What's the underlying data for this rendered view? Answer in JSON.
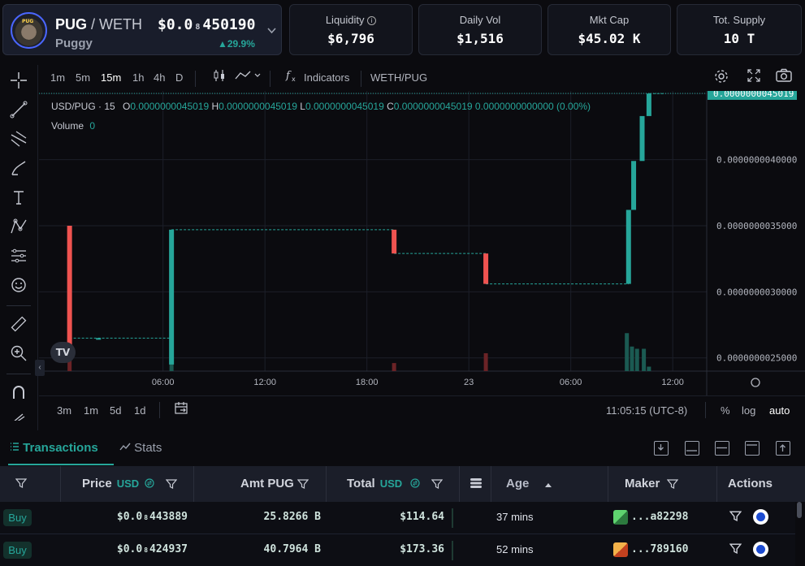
{
  "pair": {
    "base": "PUG",
    "quote": "WETH",
    "name": "Puggy",
    "price_prefix": "$0.0",
    "price_zero_count": "8",
    "price_digits": "450190",
    "change": "▲29.9%"
  },
  "stats": [
    {
      "label": "Liquidity",
      "value": "$6,796",
      "info": true
    },
    {
      "label": "Daily Vol",
      "value": "$1,516"
    },
    {
      "label": "Mkt Cap",
      "value": "$45.02 K"
    },
    {
      "label": "Tot. Supply",
      "value": "10 T"
    }
  ],
  "toolbar": {
    "timeframes": [
      "1m",
      "5m",
      "15m",
      "1h",
      "4h",
      "D"
    ],
    "active_timeframe": "15m",
    "indicators_label": "Indicators",
    "symbol": "WETH/PUG"
  },
  "legend": {
    "symbol": "USD/PUG · 15",
    "o_label": "O",
    "o": "0.0000000045019",
    "h_label": "H",
    "h": "0.0000000045019",
    "l_label": "L",
    "l": "0.0000000045019",
    "c_label": "C",
    "c": "0.0000000045019",
    "change_abs": "0.0000000000000",
    "change_pct": "(0.00%)",
    "volume_label": "Volume",
    "volume_value": "0"
  },
  "chart_data": {
    "type": "candlestick",
    "price_axis_ticks": [
      "0.0000000045000",
      "0.0000000040000",
      "0.0000000035000",
      "0.0000000030000",
      "0.0000000025000"
    ],
    "last_price_label": "0.0000000045019",
    "time_axis_ticks": [
      "06:00",
      "12:00",
      "18:00",
      "23",
      "06:00",
      "12:00"
    ],
    "ylim": [
      2.4e-09,
      4.52e-09
    ],
    "candles": [
      {
        "t": 0.5,
        "o": 3.5,
        "c": 2.5,
        "color": "red"
      },
      {
        "t": 2.2,
        "o": 2.65,
        "c": 2.65,
        "color": "green"
      },
      {
        "t": 6.5,
        "o": 2.45,
        "c": 3.47,
        "color": "green"
      },
      {
        "t": 19.6,
        "o": 3.47,
        "c": 3.29,
        "color": "red"
      },
      {
        "t": 25.0,
        "o": 3.29,
        "c": 3.06,
        "color": "red"
      },
      {
        "t": 33.4,
        "o": 3.06,
        "c": 3.62,
        "color": "green"
      },
      {
        "t": 33.7,
        "o": 3.62,
        "c": 3.99,
        "color": "green"
      },
      {
        "t": 34.2,
        "o": 3.99,
        "c": 4.33,
        "color": "green"
      },
      {
        "t": 34.6,
        "o": 4.33,
        "c": 4.5,
        "color": "green"
      }
    ],
    "flat_lines": [
      {
        "from": 6.5,
        "to": 19.6,
        "y": 3.47
      },
      {
        "from": 19.6,
        "to": 25.0,
        "y": 3.29
      },
      {
        "from": 25.0,
        "to": 33.4,
        "y": 3.06
      },
      {
        "from": 0.5,
        "to": 6.5,
        "y": 2.65
      },
      {
        "from": 34.6,
        "to": 35.6,
        "y": 4.5
      }
    ],
    "volume_bars": [
      {
        "t": 0.5,
        "v": 0.3,
        "color": "red"
      },
      {
        "t": 6.5,
        "v": 0.25,
        "color": "green"
      },
      {
        "t": 19.6,
        "v": 0.18,
        "color": "red"
      },
      {
        "t": 25.0,
        "v": 0.4,
        "color": "red"
      },
      {
        "t": 33.3,
        "v": 0.85,
        "color": "green"
      },
      {
        "t": 33.6,
        "v": 0.55,
        "color": "green"
      },
      {
        "t": 33.9,
        "v": 0.5,
        "color": "green"
      },
      {
        "t": 34.3,
        "v": 0.5,
        "color": "green"
      },
      {
        "t": 34.6,
        "v": 0.1,
        "color": "green"
      }
    ],
    "up_color": "#26a69a",
    "down_color": "#ef5350",
    "grid": true
  },
  "bottom_bar": {
    "ranges": [
      "3m",
      "1m",
      "5d",
      "1d"
    ],
    "clock": "11:05:15 (UTC-8)",
    "pct": "%",
    "log": "log",
    "auto": "auto"
  },
  "tabs": {
    "transactions": "Transactions",
    "stats": "Stats"
  },
  "table": {
    "headers": {
      "price": "Price",
      "price_unit": "USD",
      "amt": "Amt PUG",
      "total": "Total",
      "total_unit": "USD",
      "age": "Age",
      "maker": "Maker",
      "actions": "Actions"
    },
    "rows": [
      {
        "type": "Buy",
        "price_prefix": "$0.0",
        "price_zeros": "8",
        "price_digits": "443889",
        "amount": "25.8266 B",
        "total": "$114.64",
        "age": "37 mins",
        "maker": "...a82298",
        "maker_color": "#3aa35a"
      },
      {
        "type": "Buy",
        "price_prefix": "$0.0",
        "price_zeros": "8",
        "price_digits": "424937",
        "amount": "40.7964 B",
        "total": "$173.36",
        "age": "52 mins",
        "maker": "...789160",
        "maker_color": "#e2892c"
      }
    ]
  },
  "colors": {
    "accent": "#26a69a",
    "down": "#ef5350",
    "background": "#0b0b0f",
    "header_row": "#1b1e29"
  }
}
